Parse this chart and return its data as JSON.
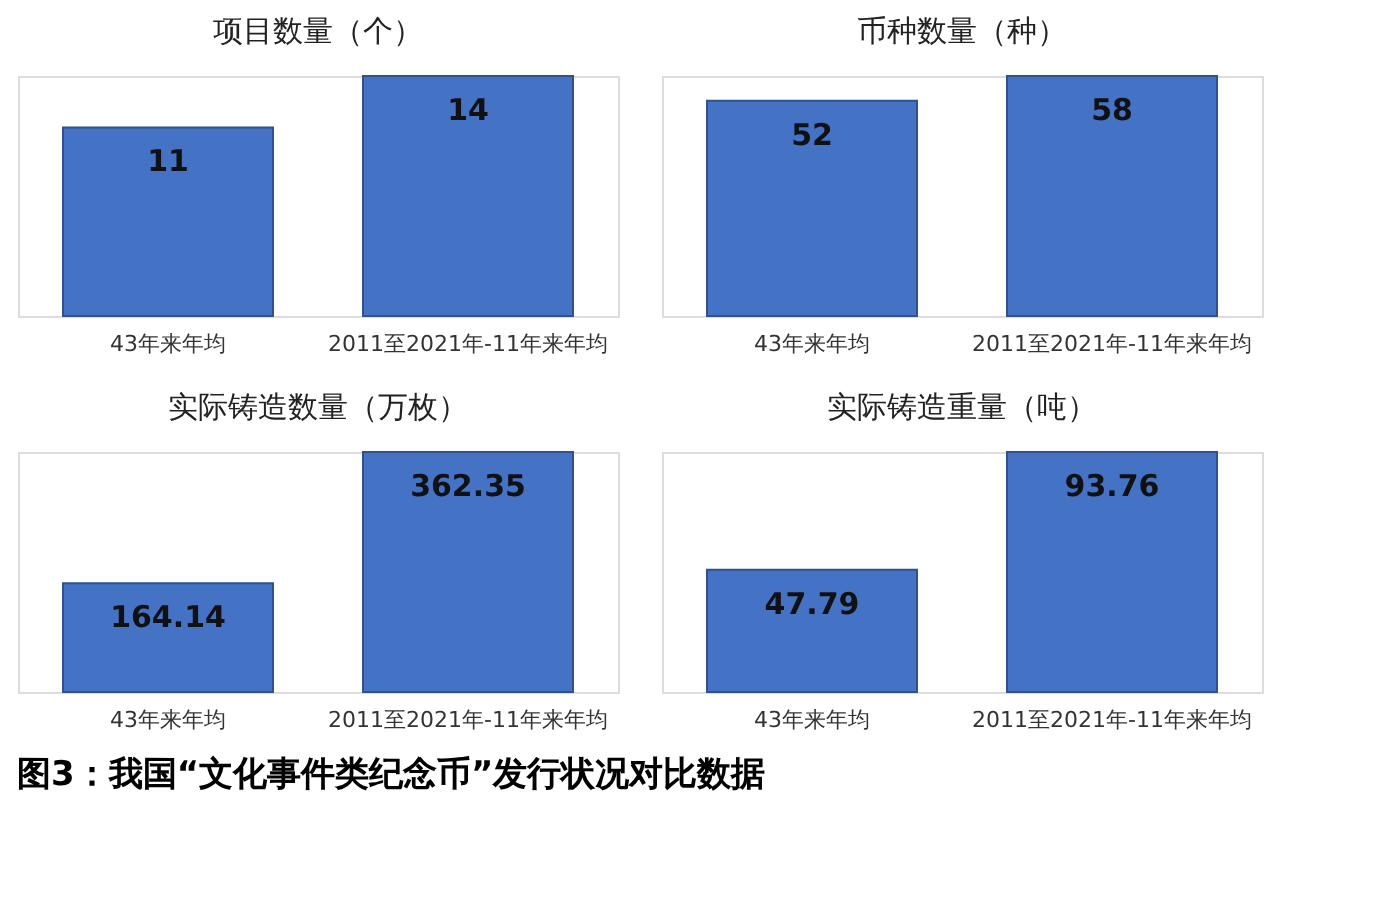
{
  "chart_data": [
    {
      "type": "bar",
      "title": "项目数量（个）",
      "categories": [
        "43年来年均",
        "2011至2021年-11年来年均"
      ],
      "values": [
        11,
        14
      ],
      "color": "#4472c4",
      "data_labels": true,
      "grid": false,
      "legend": false
    },
    {
      "type": "bar",
      "title": "币种数量（种）",
      "categories": [
        "43年来年均",
        "2011至2021年-11年来年均"
      ],
      "values": [
        52,
        58
      ],
      "color": "#4472c4",
      "data_labels": true,
      "grid": false,
      "legend": false
    },
    {
      "type": "bar",
      "title": "实际铸造数量（万枚）",
      "categories": [
        "43年来年均",
        "2011至2021年-11年来年均"
      ],
      "values": [
        164.14,
        362.35
      ],
      "color": "#4472c4",
      "data_labels": true,
      "grid": false,
      "legend": false
    },
    {
      "type": "bar",
      "title": "实际铸造重量（吨）",
      "categories": [
        "43年来年均",
        "2011至2021年-11年来年均"
      ],
      "values": [
        47.79,
        93.76
      ],
      "color": "#4472c4",
      "data_labels": true,
      "grid": false,
      "legend": false,
      "annotations": [
        "图3：我国“文化事件类纪念币”发行状况对比数据"
      ]
    }
  ]
}
